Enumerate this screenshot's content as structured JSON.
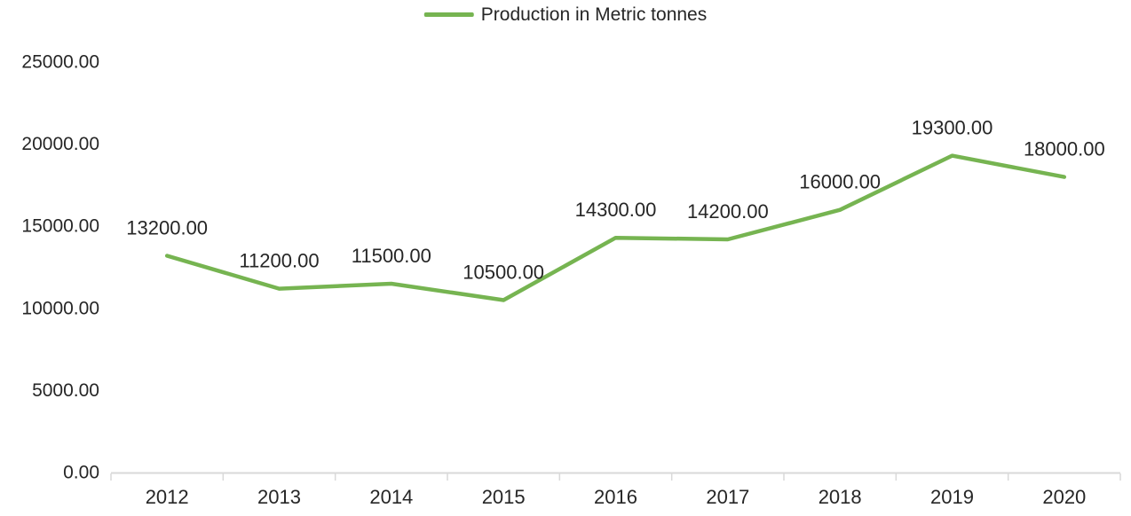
{
  "chart_data": {
    "type": "line",
    "title": "",
    "categories": [
      "2012",
      "2013",
      "2014",
      "2015",
      "2016",
      "2017",
      "2018",
      "2019",
      "2020"
    ],
    "series": [
      {
        "name": "Production in Metric tonnes",
        "values": [
          13200,
          11200,
          11500,
          10500,
          14300,
          14200,
          16000,
          19300,
          18000
        ],
        "color": "#76B451"
      }
    ],
    "data_labels": [
      "13200.00",
      "11200.00",
      "11500.00",
      "10500.00",
      "14300.00",
      "14200.00",
      "16000.00",
      "19300.00",
      "18000.00"
    ],
    "data_label_position": "above",
    "xlabel": "",
    "ylabel": "",
    "ylim": [
      0,
      25000
    ],
    "yticks": [
      0,
      5000,
      10000,
      15000,
      20000,
      25000
    ],
    "ytick_labels": [
      "0.00",
      "5000.00",
      "10000.00",
      "15000.00",
      "20000.00",
      "25000.00"
    ],
    "grid": false,
    "legend_position": "top-center"
  },
  "legend": {
    "label": "Production in Metric tonnes"
  },
  "colors": {
    "series_line": "#76B451",
    "axis": "#D9D9D9",
    "text": "#262626",
    "background": "#FFFFFF"
  }
}
